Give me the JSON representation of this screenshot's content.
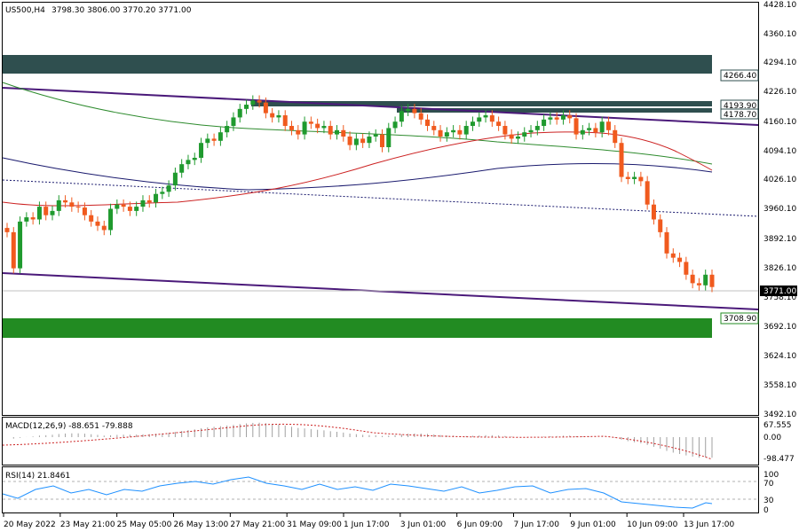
{
  "header": {
    "symbol": "US500,H4",
    "ohlc": "3798.30 3806.00 3770.20 3771.00"
  },
  "price_axis": {
    "ticks": [
      "4428.10",
      "4360.10",
      "4294.10",
      "4226.10",
      "4160.10",
      "4094.10",
      "4026.10",
      "3960.10",
      "3892.10",
      "3826.10",
      "3758.10",
      "3692.10",
      "3624.10",
      "3558.10",
      "3492.10"
    ],
    "current_price": "3771.00"
  },
  "zones": {
    "resistance_label": "4266.40",
    "level_1": "4193.90",
    "level_2": "4178.70",
    "support_label": "3708.90"
  },
  "macd": {
    "label": "MACD(12,26,9) -88.651 -79.888",
    "ticks": [
      "67.555",
      "0.00",
      "-98.477"
    ]
  },
  "rsi": {
    "label": "RSI(14) 21.8461",
    "ticks": [
      "100",
      "70",
      "30",
      "0"
    ]
  },
  "time_axis": [
    "20 May 2022",
    "23 May 21:00",
    "25 May 05:00",
    "26 May 13:00",
    "27 May 21:00",
    "31 May 09:00",
    "1 Jun 17:00",
    "3 Jun 01:00",
    "6 Jun 09:00",
    "7 Jun 17:00",
    "9 Jun 01:00",
    "10 Jun 09:00",
    "13 Jun 17:00"
  ],
  "colors": {
    "bull": "#1f9a2e",
    "bear": "#f05a1e",
    "zone_dark": "#2f4f4f",
    "zone_green": "#228b22",
    "channel": "#4b1a7a",
    "ma_red": "#cc2222",
    "ma_green": "#2e8b2e",
    "ma_navy": "#1a1a6e"
  },
  "chart_data": {
    "type": "candlestick",
    "y_range": [
      3470,
      4440
    ],
    "closes": [
      3900,
      3815,
      3925,
      3935,
      3930,
      3960,
      3940,
      3950,
      3975,
      3970,
      3960,
      3958,
      3940,
      3925,
      3915,
      3905,
      3955,
      3965,
      3960,
      3950,
      3960,
      3975,
      3970,
      3990,
      3995,
      4010,
      4040,
      4060,
      4070,
      4075,
      4110,
      4120,
      4115,
      4135,
      4150,
      4170,
      4190,
      4200,
      4210,
      4205,
      4180,
      4170,
      4175,
      4150,
      4140,
      4130,
      4160,
      4155,
      4145,
      4150,
      4130,
      4140,
      4125,
      4105,
      4120,
      4110,
      4125,
      4130,
      4100,
      4145,
      4160,
      4185,
      4190,
      4180,
      4165,
      4150,
      4140,
      4125,
      4135,
      4140,
      4130,
      4150,
      4160,
      4170,
      4175,
      4160,
      4150,
      4130,
      4120,
      4125,
      4135,
      4140,
      4150,
      4165,
      4170,
      4165,
      4175,
      4168,
      4130,
      4140,
      4145,
      4135,
      4160,
      4140,
      4110,
      4030,
      4025,
      4030,
      4020,
      3965,
      3930,
      3900,
      3850,
      3840,
      3830,
      3800,
      3780,
      3775,
      3800,
      3771
    ]
  }
}
